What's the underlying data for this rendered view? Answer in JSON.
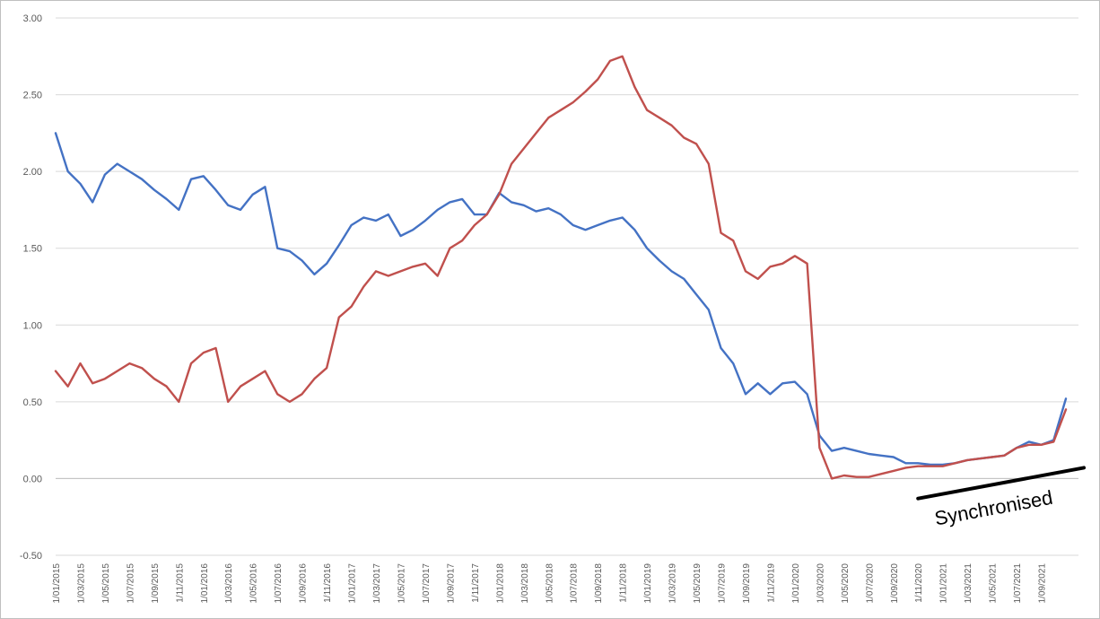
{
  "chart_data": {
    "type": "line",
    "title": "",
    "xlabel": "",
    "ylabel": "",
    "ylim": [
      -0.5,
      3.0
    ],
    "y_ticks": [
      "3.00",
      "2.50",
      "2.00",
      "1.50",
      "1.00",
      "0.50",
      "0.00",
      "-0.50"
    ],
    "y_tick_values": [
      3.0,
      2.5,
      2.0,
      1.5,
      1.0,
      0.5,
      0.0,
      -0.5
    ],
    "x_ticks": [
      "1/01/2015",
      "1/03/2015",
      "1/05/2015",
      "1/07/2015",
      "1/09/2015",
      "1/11/2015",
      "1/01/2016",
      "1/03/2016",
      "1/05/2016",
      "1/07/2016",
      "1/09/2016",
      "1/11/2016",
      "1/01/2017",
      "1/03/2017",
      "1/05/2017",
      "1/07/2017",
      "1/09/2017",
      "1/11/2017",
      "1/01/2018",
      "1/03/2018",
      "1/05/2018",
      "1/07/2018",
      "1/09/2018",
      "1/11/2018",
      "1/01/2019",
      "1/03/2019",
      "1/05/2019",
      "1/07/2019",
      "1/09/2019",
      "1/11/2019",
      "1/01/2020",
      "1/03/2020",
      "1/05/2020",
      "1/07/2020",
      "1/09/2020",
      "1/11/2020",
      "1/01/2021",
      "1/03/2021",
      "1/05/2021",
      "1/07/2021",
      "1/09/2021"
    ],
    "x_range": [
      "1/01/2015",
      "1/11/2021"
    ],
    "grid": "horizontal",
    "legend": "none",
    "series": [
      {
        "color": "#4472c4",
        "x": [
          "1/01/2015",
          "1/02/2015",
          "1/03/2015",
          "1/04/2015",
          "1/05/2015",
          "1/06/2015",
          "1/07/2015",
          "1/08/2015",
          "1/09/2015",
          "1/10/2015",
          "1/11/2015",
          "1/12/2015",
          "1/01/2016",
          "1/02/2016",
          "1/03/2016",
          "1/04/2016",
          "1/05/2016",
          "1/06/2016",
          "1/07/2016",
          "1/08/2016",
          "1/09/2016",
          "1/10/2016",
          "1/11/2016",
          "1/12/2016",
          "1/01/2017",
          "1/02/2017",
          "1/03/2017",
          "1/04/2017",
          "1/05/2017",
          "1/06/2017",
          "1/07/2017",
          "1/08/2017",
          "1/09/2017",
          "1/10/2017",
          "1/11/2017",
          "1/12/2017",
          "1/01/2018",
          "1/02/2018",
          "1/03/2018",
          "1/04/2018",
          "1/05/2018",
          "1/06/2018",
          "1/07/2018",
          "1/08/2018",
          "1/09/2018",
          "1/10/2018",
          "1/11/2018",
          "1/12/2018",
          "1/01/2019",
          "1/02/2019",
          "1/03/2019",
          "1/04/2019",
          "1/05/2019",
          "1/06/2019",
          "1/07/2019",
          "1/08/2019",
          "1/09/2019",
          "1/10/2019",
          "1/11/2019",
          "1/12/2019",
          "1/01/2020",
          "1/02/2020",
          "1/03/2020",
          "1/04/2020",
          "1/05/2020",
          "1/06/2020",
          "1/07/2020",
          "1/08/2020",
          "1/09/2020",
          "1/10/2020",
          "1/11/2020",
          "1/12/2020",
          "1/01/2021",
          "1/02/2021",
          "1/03/2021",
          "1/04/2021",
          "1/05/2021",
          "1/06/2021",
          "1/07/2021",
          "1/08/2021",
          "1/09/2021",
          "1/10/2021",
          "1/11/2021"
        ],
        "values": [
          2.25,
          2.0,
          1.92,
          1.8,
          1.98,
          2.05,
          2.0,
          1.95,
          1.88,
          1.82,
          1.75,
          1.95,
          1.97,
          1.88,
          1.78,
          1.75,
          1.85,
          1.9,
          1.5,
          1.48,
          1.42,
          1.33,
          1.4,
          1.52,
          1.65,
          1.7,
          1.68,
          1.72,
          1.58,
          1.62,
          1.68,
          1.75,
          1.8,
          1.82,
          1.72,
          1.72,
          1.86,
          1.8,
          1.78,
          1.74,
          1.76,
          1.72,
          1.65,
          1.62,
          1.65,
          1.68,
          1.7,
          1.62,
          1.5,
          1.42,
          1.35,
          1.3,
          1.2,
          1.1,
          0.85,
          0.75,
          0.55,
          0.62,
          0.55,
          0.62,
          0.63,
          0.55,
          0.28,
          0.18,
          0.2,
          0.18,
          0.16,
          0.15,
          0.14,
          0.1,
          0.1,
          0.09,
          0.09,
          0.1,
          0.12,
          0.13,
          0.14,
          0.15,
          0.2,
          0.24,
          0.22,
          0.25,
          0.52
        ]
      },
      {
        "color": "#c0504d",
        "x": [
          "1/01/2015",
          "1/02/2015",
          "1/03/2015",
          "1/04/2015",
          "1/05/2015",
          "1/06/2015",
          "1/07/2015",
          "1/08/2015",
          "1/09/2015",
          "1/10/2015",
          "1/11/2015",
          "1/12/2015",
          "1/01/2016",
          "1/02/2016",
          "1/03/2016",
          "1/04/2016",
          "1/05/2016",
          "1/06/2016",
          "1/07/2016",
          "1/08/2016",
          "1/09/2016",
          "1/10/2016",
          "1/11/2016",
          "1/12/2016",
          "1/01/2017",
          "1/02/2017",
          "1/03/2017",
          "1/04/2017",
          "1/05/2017",
          "1/06/2017",
          "1/07/2017",
          "1/08/2017",
          "1/09/2017",
          "1/10/2017",
          "1/11/2017",
          "1/12/2017",
          "1/01/2018",
          "1/02/2018",
          "1/03/2018",
          "1/04/2018",
          "1/05/2018",
          "1/06/2018",
          "1/07/2018",
          "1/08/2018",
          "1/09/2018",
          "1/10/2018",
          "1/11/2018",
          "1/12/2018",
          "1/01/2019",
          "1/02/2019",
          "1/03/2019",
          "1/04/2019",
          "1/05/2019",
          "1/06/2019",
          "1/07/2019",
          "1/08/2019",
          "1/09/2019",
          "1/10/2019",
          "1/11/2019",
          "1/12/2019",
          "1/01/2020",
          "1/02/2020",
          "1/03/2020",
          "1/04/2020",
          "1/05/2020",
          "1/06/2020",
          "1/07/2020",
          "1/08/2020",
          "1/09/2020",
          "1/10/2020",
          "1/11/2020",
          "1/12/2020",
          "1/01/2021",
          "1/02/2021",
          "1/03/2021",
          "1/04/2021",
          "1/05/2021",
          "1/06/2021",
          "1/07/2021",
          "1/08/2021",
          "1/09/2021",
          "1/10/2021",
          "1/11/2021"
        ],
        "values": [
          0.7,
          0.6,
          0.75,
          0.62,
          0.65,
          0.7,
          0.75,
          0.72,
          0.65,
          0.6,
          0.5,
          0.75,
          0.82,
          0.85,
          0.5,
          0.6,
          0.65,
          0.7,
          0.55,
          0.5,
          0.55,
          0.65,
          0.72,
          1.05,
          1.12,
          1.25,
          1.35,
          1.32,
          1.35,
          1.38,
          1.4,
          1.32,
          1.5,
          1.55,
          1.65,
          1.72,
          1.85,
          2.05,
          2.15,
          2.25,
          2.35,
          2.4,
          2.45,
          2.52,
          2.6,
          2.72,
          2.75,
          2.55,
          2.4,
          2.35,
          2.3,
          2.22,
          2.18,
          2.05,
          1.6,
          1.55,
          1.35,
          1.3,
          1.38,
          1.4,
          1.45,
          1.4,
          0.2,
          0.0,
          0.02,
          0.01,
          0.01,
          0.03,
          0.05,
          0.07,
          0.08,
          0.08,
          0.08,
          0.1,
          0.12,
          0.13,
          0.14,
          0.15,
          0.2,
          0.22,
          0.22,
          0.24,
          0.45
        ]
      }
    ],
    "annotations": [
      {
        "text": "Synchronised",
        "x_start": "1/11/2020",
        "x_end": "1/11/2021",
        "y_start": -0.13,
        "y_end": 0.07
      }
    ]
  }
}
